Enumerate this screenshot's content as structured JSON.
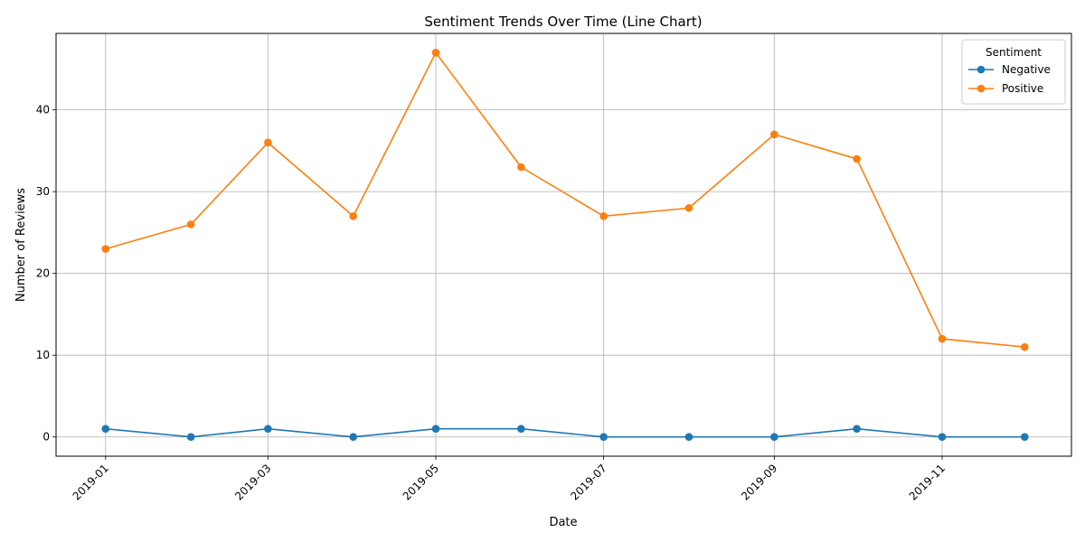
{
  "chart_data": {
    "type": "line",
    "title": "Sentiment Trends Over Time (Line Chart)",
    "xlabel": "Date",
    "ylabel": "Number of Reviews",
    "x": [
      "2019-01-01",
      "2019-02-01",
      "2019-03-01",
      "2019-04-01",
      "2019-05-01",
      "2019-06-01",
      "2019-07-01",
      "2019-08-01",
      "2019-09-01",
      "2019-10-01",
      "2019-11-01",
      "2019-12-01"
    ],
    "xticks": [
      "2019-01",
      "2019-03",
      "2019-05",
      "2019-07",
      "2019-09",
      "2019-11"
    ],
    "yticks": [
      0,
      10,
      20,
      30,
      40
    ],
    "ylim": [
      -2.35,
      49.35
    ],
    "xlim": [
      "2018-12-14",
      "2019-12-18"
    ],
    "grid": true,
    "legend": {
      "title": "Sentiment",
      "placement": "top-right"
    },
    "series": [
      {
        "name": "Negative",
        "color": "#1f77b4",
        "values": [
          1,
          0,
          1,
          0,
          1,
          1,
          0,
          0,
          0,
          1,
          0,
          0
        ]
      },
      {
        "name": "Positive",
        "color": "#ff7f0e",
        "values": [
          23,
          26,
          36,
          27,
          47,
          33,
          27,
          28,
          37,
          34,
          12,
          11
        ]
      }
    ]
  }
}
